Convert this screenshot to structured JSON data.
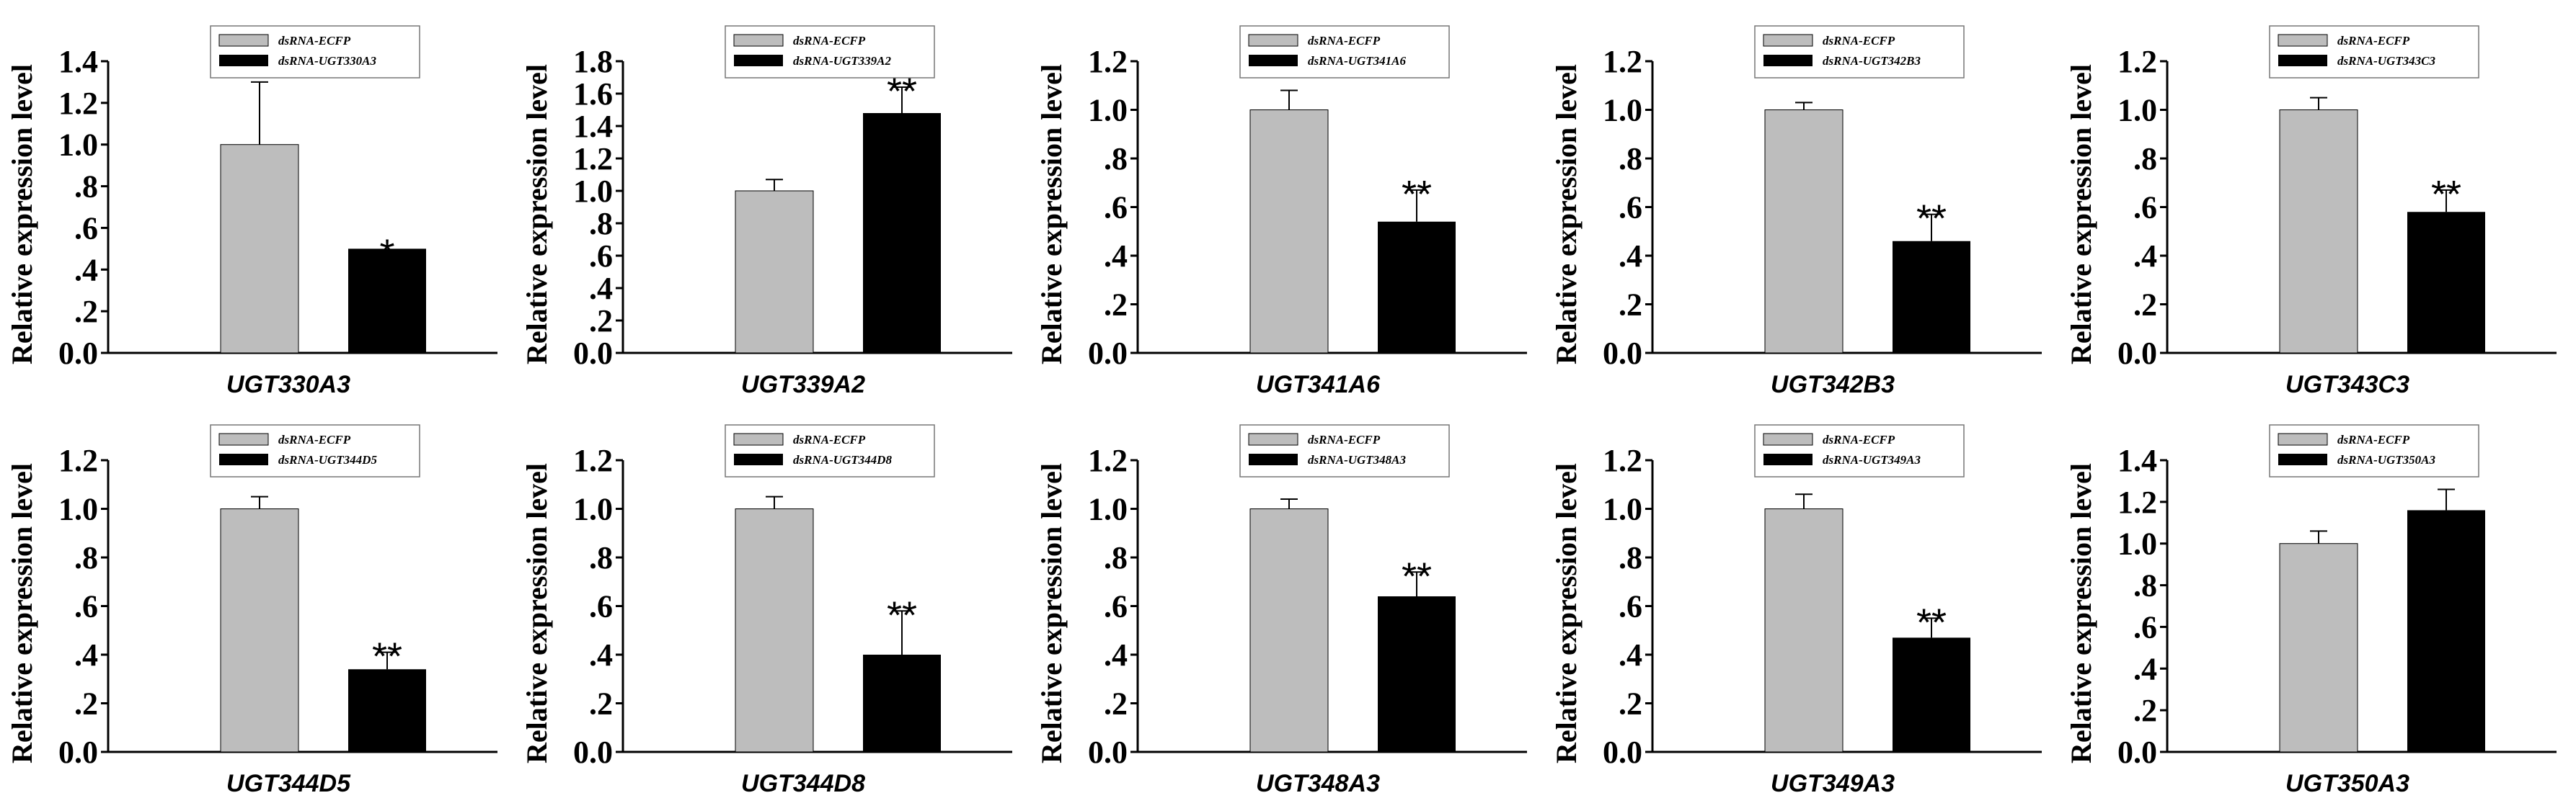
{
  "figure": {
    "ylabel": "Relative expression level",
    "control_label": "dsRNA-ECFP",
    "colors": {
      "control": "#bdbdbd",
      "treatment": "#000000",
      "axis": "#000000",
      "legend_box": "#777777"
    }
  },
  "chart_data": [
    {
      "type": "bar",
      "title": "UGT330A3",
      "categories": [
        "dsRNA-ECFP",
        "dsRNA-UGT330A3"
      ],
      "values": [
        1.0,
        0.5
      ],
      "error": [
        0.3,
        0.0
      ],
      "significance": [
        "",
        "*"
      ],
      "ylim": [
        0,
        1.4
      ],
      "yticks": [
        "0.0",
        ".2",
        ".4",
        ".6",
        ".8",
        "1.0",
        "1.2",
        "1.4"
      ],
      "legend": [
        "dsRNA-ECFP",
        "dsRNA-UGT330A3"
      ]
    },
    {
      "type": "bar",
      "title": "UGT339A2",
      "categories": [
        "dsRNA-ECFP",
        "dsRNA-UGT339A2"
      ],
      "values": [
        1.0,
        1.48
      ],
      "error": [
        0.07,
        0.16
      ],
      "significance": [
        "",
        "**"
      ],
      "ylim": [
        0,
        1.8
      ],
      "yticks": [
        "0.0",
        ".2",
        ".4",
        ".6",
        ".8",
        "1.0",
        "1.2",
        "1.4",
        "1.6",
        "1.8"
      ],
      "legend": [
        "dsRNA-ECFP",
        "dsRNA-UGT339A2"
      ]
    },
    {
      "type": "bar",
      "title": "UGT341A6",
      "categories": [
        "dsRNA-ECFP",
        "dsRNA-UGT341A6"
      ],
      "values": [
        1.0,
        0.54
      ],
      "error": [
        0.08,
        0.13
      ],
      "significance": [
        "",
        "**"
      ],
      "ylim": [
        0,
        1.2
      ],
      "yticks": [
        "0.0",
        ".2",
        ".4",
        ".6",
        ".8",
        "1.0",
        "1.2"
      ],
      "legend": [
        "dsRNA-ECFP",
        "dsRNA-UGT341A6"
      ]
    },
    {
      "type": "bar",
      "title": "UGT342B3",
      "categories": [
        "dsRNA-ECFP",
        "dsRNA-UGT342B3"
      ],
      "values": [
        1.0,
        0.46
      ],
      "error": [
        0.03,
        0.11
      ],
      "significance": [
        "",
        "**"
      ],
      "ylim": [
        0,
        1.2
      ],
      "yticks": [
        "0.0",
        ".2",
        ".4",
        ".6",
        ".8",
        "1.0",
        "1.2"
      ],
      "legend": [
        "dsRNA-ECFP",
        "dsRNA-UGT342B3"
      ]
    },
    {
      "type": "bar",
      "title": "UGT343C3",
      "categories": [
        "dsRNA-ECFP",
        "dsRNA-UGT343C3"
      ],
      "values": [
        1.0,
        0.58
      ],
      "error": [
        0.05,
        0.09
      ],
      "significance": [
        "",
        "**"
      ],
      "ylim": [
        0,
        1.2
      ],
      "yticks": [
        "0.0",
        ".2",
        ".4",
        ".6",
        ".8",
        "1.0",
        "1.2"
      ],
      "legend": [
        "dsRNA-ECFP",
        "dsRNA-UGT343C3"
      ]
    },
    {
      "type": "bar",
      "title": "UGT344D5",
      "categories": [
        "dsRNA-ECFP",
        "dsRNA-UGT344D5"
      ],
      "values": [
        1.0,
        0.34
      ],
      "error": [
        0.05,
        0.07
      ],
      "significance": [
        "",
        "**"
      ],
      "ylim": [
        0,
        1.2
      ],
      "yticks": [
        "0.0",
        ".2",
        ".4",
        ".6",
        ".8",
        "1.0",
        "1.2"
      ],
      "legend": [
        "dsRNA-ECFP",
        "dsRNA-UGT344D5"
      ]
    },
    {
      "type": "bar",
      "title": "UGT344D8",
      "categories": [
        "dsRNA-ECFP",
        "dsRNA-UGT344D8"
      ],
      "values": [
        1.0,
        0.4
      ],
      "error": [
        0.05,
        0.18
      ],
      "significance": [
        "",
        "**"
      ],
      "ylim": [
        0,
        1.2
      ],
      "yticks": [
        "0.0",
        ".2",
        ".4",
        ".6",
        ".8",
        "1.0",
        "1.2"
      ],
      "legend": [
        "dsRNA-ECFP",
        "dsRNA-UGT344D8"
      ]
    },
    {
      "type": "bar",
      "title": "UGT348A3",
      "categories": [
        "dsRNA-ECFP",
        "dsRNA-UGT348A3"
      ],
      "values": [
        1.0,
        0.64
      ],
      "error": [
        0.04,
        0.1
      ],
      "significance": [
        "",
        "**"
      ],
      "ylim": [
        0,
        1.2
      ],
      "yticks": [
        "0.0",
        ".2",
        ".4",
        ".6",
        ".8",
        "1.0",
        "1.2"
      ],
      "legend": [
        "dsRNA-ECFP",
        "dsRNA-UGT348A3"
      ]
    },
    {
      "type": "bar",
      "title": "UGT349A3",
      "categories": [
        "dsRNA-ECFP",
        "dsRNA-UGT349A3"
      ],
      "values": [
        1.0,
        0.47
      ],
      "error": [
        0.06,
        0.08
      ],
      "significance": [
        "",
        "**"
      ],
      "ylim": [
        0,
        1.2
      ],
      "yticks": [
        "0.0",
        ".2",
        ".4",
        ".6",
        ".8",
        "1.0",
        "1.2"
      ],
      "legend": [
        "dsRNA-ECFP",
        "dsRNA-UGT349A3"
      ]
    },
    {
      "type": "bar",
      "title": "UGT350A3",
      "categories": [
        "dsRNA-ECFP",
        "dsRNA-UGT350A3"
      ],
      "values": [
        1.0,
        1.16
      ],
      "error": [
        0.06,
        0.1
      ],
      "significance": [
        "",
        ""
      ],
      "ylim": [
        0,
        1.4
      ],
      "yticks": [
        "0.0",
        ".2",
        ".4",
        ".6",
        ".8",
        "1.0",
        "1.2",
        "1.4"
      ],
      "legend": [
        "dsRNA-ECFP",
        "dsRNA-UGT350A3"
      ]
    }
  ]
}
